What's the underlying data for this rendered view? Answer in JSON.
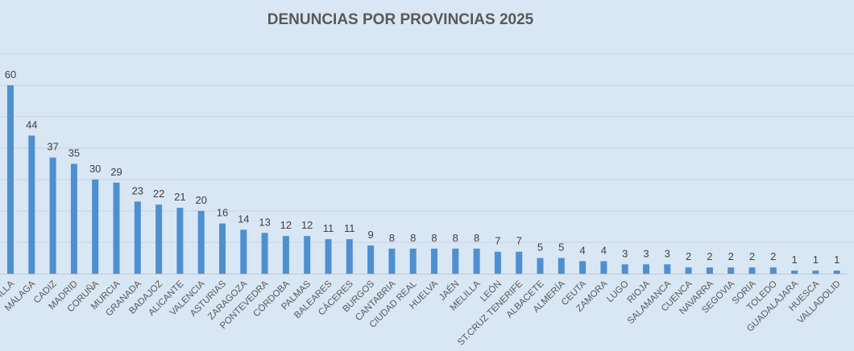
{
  "chart_data": {
    "type": "bar",
    "title": "DENUNCIAS POR PROVINCIAS 2025",
    "xlabel": "",
    "ylabel": "",
    "ylim": [
      0,
      70
    ],
    "grid": true,
    "bar_color": "#4e8fd2",
    "categories": [
      "SEVILLA",
      "MÁLAGA",
      "CADIZ",
      "MADRID",
      "CORUÑA",
      "MURCIA",
      "GRANADA",
      "BADAJOZ",
      "ALICANTE",
      "VALENCIA",
      "ASTURIAS",
      "ZARAGOZA",
      "PONTEVEDRA",
      "CÓRDOBA",
      "PALMAS",
      "BALEARES",
      "CÁCERES",
      "BURGOS",
      "CANTABRIA",
      "CIUDAD REAL",
      "HUELVA",
      "JAÉN",
      "MELILLA",
      "LEÓN",
      "ST.CRUZ TENERIFE",
      "ALBACETE",
      "ALMERÍA",
      "CEUTA",
      "ZAMORA",
      "LUGO",
      "RIOJA",
      "SALAMANCA",
      "CUENCA",
      "NAVARRA",
      "SEGOVIA",
      "SORIA",
      "TOLEDO",
      "GUADALAJARA",
      "HUESCA",
      "VALLADOLID"
    ],
    "values": [
      60,
      44,
      37,
      35,
      30,
      29,
      23,
      22,
      21,
      20,
      16,
      14,
      13,
      12,
      12,
      11,
      11,
      9,
      8,
      8,
      8,
      8,
      8,
      7,
      7,
      5,
      5,
      4,
      4,
      3,
      3,
      3,
      2,
      2,
      2,
      2,
      2,
      1,
      1,
      1
    ]
  }
}
